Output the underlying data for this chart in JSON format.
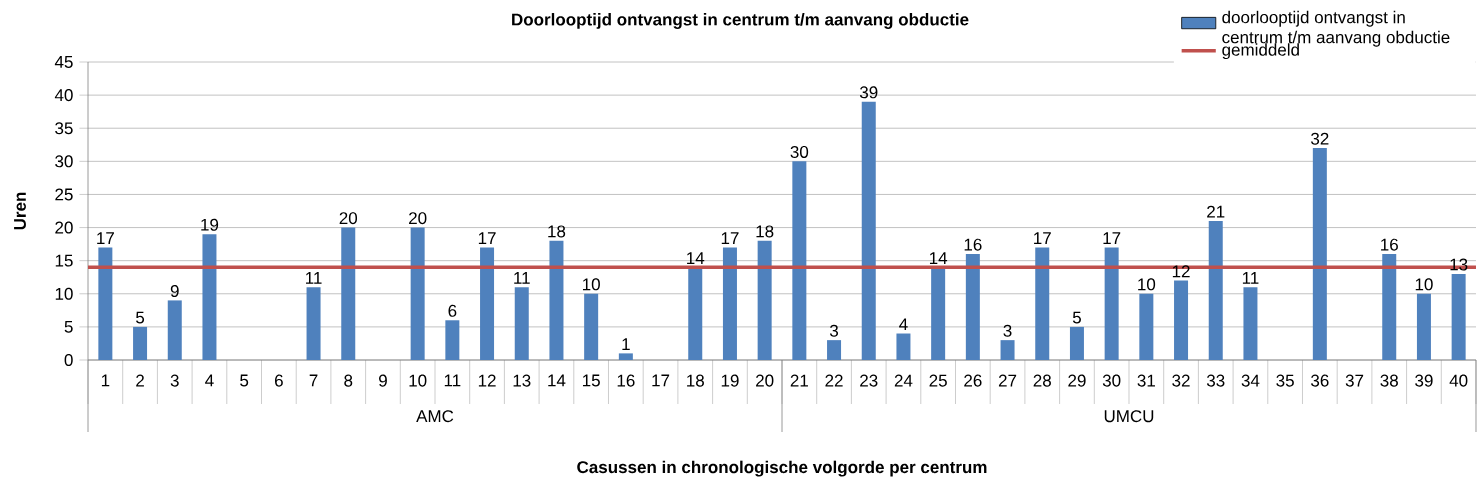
{
  "chart_data": {
    "type": "bar",
    "title": "Doorlooptijd ontvangst in centrum t/m aanvang obductie",
    "xlabel": "Casussen in chronologische volgorde per centrum",
    "ylabel": "Uren",
    "categories": [
      "1",
      "2",
      "3",
      "4",
      "5",
      "6",
      "7",
      "8",
      "9",
      "10",
      "11",
      "12",
      "13",
      "14",
      "15",
      "16",
      "17",
      "18",
      "19",
      "20",
      "21",
      "22",
      "23",
      "24",
      "25",
      "26",
      "27",
      "28",
      "29",
      "30",
      "31",
      "32",
      "33",
      "34",
      "35",
      "36",
      "37",
      "38",
      "39",
      "40"
    ],
    "series": [
      {
        "name": "doorlooptijd ontvangst in centrum t/m aanvang obductie",
        "color": "#4f81bd",
        "values": [
          17,
          5,
          9,
          19,
          null,
          null,
          11,
          20,
          null,
          20,
          6,
          17,
          11,
          18,
          10,
          1,
          null,
          14,
          17,
          18,
          30,
          3,
          39,
          4,
          14,
          16,
          3,
          17,
          5,
          17,
          10,
          12,
          21,
          11,
          null,
          32,
          null,
          16,
          10,
          13
        ]
      }
    ],
    "ref_lines": [
      {
        "axis": "y",
        "value": 14,
        "label": "gemiddeld",
        "color": "#c0504d"
      }
    ],
    "annotations": [
      "AMC",
      "UMCU"
    ],
    "data_labels": true,
    "ylim": [
      0,
      45
    ],
    "yticks": [
      0,
      5,
      10,
      15,
      20,
      25,
      30,
      35,
      40,
      45
    ],
    "grid": "y",
    "legend": "top right"
  }
}
